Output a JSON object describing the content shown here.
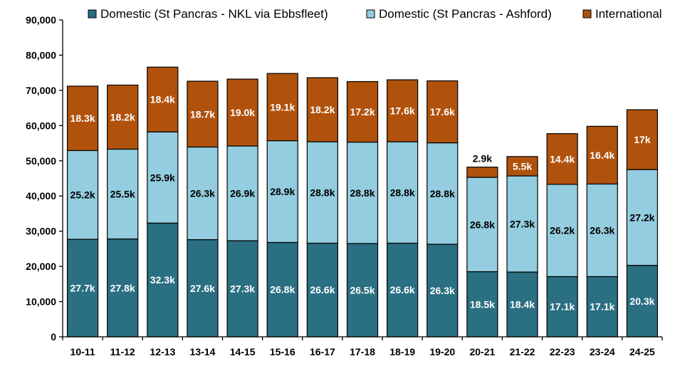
{
  "chart_data": {
    "type": "bar",
    "stacked": true,
    "categories": [
      "10-11",
      "11-12",
      "12-13",
      "13-14",
      "14-15",
      "15-16",
      "16-17",
      "17-18",
      "18-19",
      "19-20",
      "20-21",
      "21-22",
      "22-23",
      "23-24",
      "24-25"
    ],
    "ylim": [
      0,
      90000
    ],
    "y_ticks": [
      "0",
      "10,000",
      "20,000",
      "30,000",
      "40,000",
      "50,000",
      "60,000",
      "70,000",
      "80,000",
      "90,000"
    ],
    "grid": false,
    "legend_position": "top",
    "series": [
      {
        "name": "Domestic (St Pancras - NKL via Ebbsfleet)",
        "color": "#2a6f82",
        "values": [
          27700,
          27800,
          32300,
          27600,
          27300,
          26800,
          26600,
          26500,
          26600,
          26300,
          18500,
          18400,
          17100,
          17100,
          20300
        ],
        "labels": [
          "27.7k",
          "27.8k",
          "32.3k",
          "27.6k",
          "27.3k",
          "26.8k",
          "26.6k",
          "26.5k",
          "26.6k",
          "26.3k",
          "18.5k",
          "18.4k",
          "17.1k",
          "17.1k",
          "20.3k"
        ]
      },
      {
        "name": "Domestic (St Pancras - Ashford)",
        "color": "#93cddf",
        "values": [
          25200,
          25500,
          25900,
          26300,
          26900,
          28900,
          28800,
          28800,
          28800,
          28800,
          26800,
          27300,
          26200,
          26300,
          27200
        ],
        "labels": [
          "25.2k",
          "25.5k",
          "25.9k",
          "26.3k",
          "26.9k",
          "28.9k",
          "28.8k",
          "28.8k",
          "28.8k",
          "28.8k",
          "26.8k",
          "27.3k",
          "26.2k",
          "26.3k",
          "27.2k"
        ]
      },
      {
        "name": "International",
        "color": "#b0520c",
        "values": [
          18300,
          18200,
          18400,
          18700,
          19000,
          19100,
          18200,
          17200,
          17600,
          17600,
          2900,
          5500,
          14400,
          16400,
          17000
        ],
        "labels": [
          "18.3k",
          "18.2k",
          "18.4k",
          "18.7k",
          "19.0k",
          "19.1k",
          "18.2k",
          "17.2k",
          "17.6k",
          "17.6k",
          "2.9k",
          "5.5k",
          "14.4k",
          "16.4k",
          "17k"
        ]
      }
    ]
  }
}
